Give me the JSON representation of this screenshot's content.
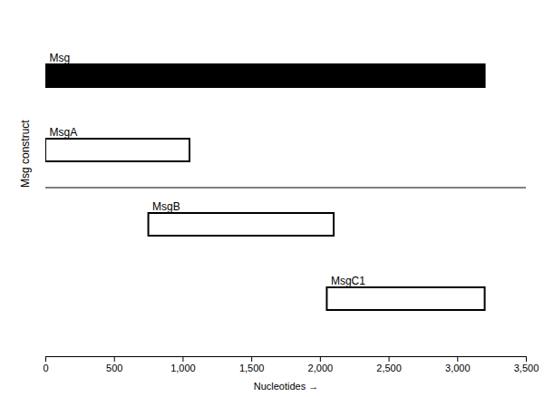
{
  "chart_data": {
    "type": "range",
    "orientation": "horizontal",
    "categories": [
      "Msg",
      "MsgA",
      "MsgB",
      "MsgC1"
    ],
    "start": [
      0,
      0,
      750,
      2050
    ],
    "end": [
      3200,
      1050,
      2100,
      3200
    ],
    "colors": [
      "#000000",
      "#ffffff",
      "#ffffff",
      "#ffffff"
    ],
    "xlabel": "Nucleotides",
    "ylabel": "Msg construct",
    "xlim": [
      0,
      3500
    ],
    "xticks": [
      0,
      500,
      {
        "value": 1000,
        "label": "1,000"
      },
      {
        "value": 1500,
        "label": "1,500"
      },
      {
        "value": 2000,
        "label": "2,000"
      },
      {
        "value": 2500,
        "label": "2,500"
      },
      {
        "value": 3000,
        "label": "3,000"
      },
      {
        "value": 3500,
        "label": "3,500"
      }
    ],
    "tick_labels": "x"
  }
}
